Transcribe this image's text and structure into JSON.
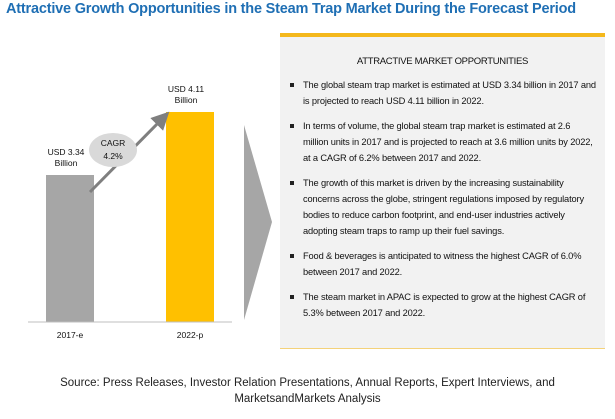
{
  "title": "Attractive Growth Opportunities in the Steam Trap Market During the Forecast Period",
  "chart_data": {
    "type": "bar",
    "categories": [
      "2017-e",
      "2022-p"
    ],
    "values": [
      3.34,
      4.11
    ],
    "data_labels": [
      "USD 3.34 Billion",
      "USD 4.11 Billion"
    ],
    "data_labels_lines": [
      [
        "USD 3.34",
        "Billion"
      ],
      [
        "USD 4.11",
        "Billion"
      ]
    ],
    "annotation": {
      "line1": "CAGR",
      "line2": "4.2%"
    },
    "colors": [
      "#a6a6a6",
      "#ffc000"
    ],
    "ylim": [
      0,
      4.5
    ]
  },
  "panel": {
    "heading": "ATTRACTIVE MARKET OPPORTUNITIES",
    "bullets": [
      "The global steam trap market is estimated at USD 3.34 billion in 2017 and is projected to reach USD 4.11 billion in 2022.",
      "In terms of volume, the global steam trap market is estimated at 2.6 million units in 2017 and is projected to reach at 3.6 million units by 2022, at a CAGR of 6.2% between 2017 and 2022.",
      "The growth of this market is driven by the increasing sustainability concerns across the globe, stringent regulations imposed by regulatory bodies to reduce carbon footprint, and end-user industries actively adopting steam traps to ramp up their fuel savings.",
      "Food & beverages is anticipated to witness the highest CAGR of 6.0% between 2017 and 2022.",
      "The steam market in APAC is expected to grow at the highest CAGR of 5.3% between 2017 and 2022."
    ]
  },
  "source": "Source: Press Releases, Investor Relation Presentations, Annual Reports, Expert Interviews, and MarketsandMarkets Analysis"
}
